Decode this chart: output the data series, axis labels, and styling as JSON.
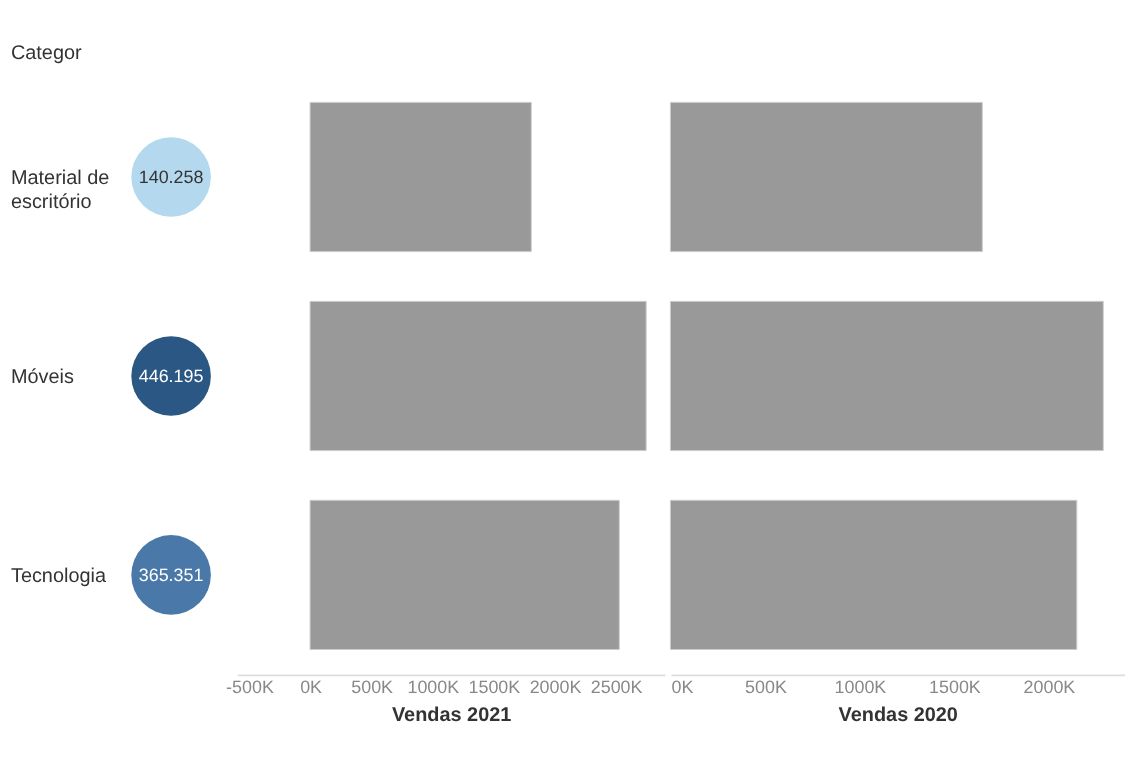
{
  "chart_data": [
    {
      "type": "other",
      "categories": [
        "Material de escritório",
        "Móveis",
        "Tecnologia"
      ],
      "ylabel": "Categor",
      "values": [
        140258,
        446195,
        365351
      ],
      "value_labels": [
        "140.258",
        "446.195",
        "365.351"
      ],
      "colors": [
        "#b4d9ef",
        "#2a5783",
        "#4a78a8"
      ]
    },
    {
      "type": "bar",
      "orientation": "horizontal",
      "xlabel": "Vendas 2021",
      "xlim": [
        -600000,
        2900000
      ],
      "xticks": [
        {
          "value": -500000,
          "label": "-500K"
        },
        {
          "value": 0,
          "label": "0K"
        },
        {
          "value": 500000,
          "label": "500K"
        },
        {
          "value": 1000000,
          "label": "1000K"
        },
        {
          "value": 1500000,
          "label": "1500K"
        },
        {
          "value": 2000000,
          "label": "2000K"
        },
        {
          "value": 2500000,
          "label": "2500K"
        }
      ],
      "tick_labels": "x",
      "grid": false,
      "color": "#999999",
      "values": [
        1810000,
        2750000,
        2530000
      ]
    },
    {
      "type": "bar",
      "orientation": "horizontal",
      "xlabel": "Vendas 2020",
      "xlim": [
        0,
        2400000
      ],
      "xticks": [
        {
          "value": 0,
          "label": "0K"
        },
        {
          "value": 500000,
          "label": "500K"
        },
        {
          "value": 1000000,
          "label": "1000K"
        },
        {
          "value": 1500000,
          "label": "1500K"
        },
        {
          "value": 2000000,
          "label": "2000K"
        }
      ],
      "tick_labels": "x",
      "grid": false,
      "color": "#999999",
      "values": [
        1650000,
        2290000,
        2150000
      ]
    }
  ]
}
